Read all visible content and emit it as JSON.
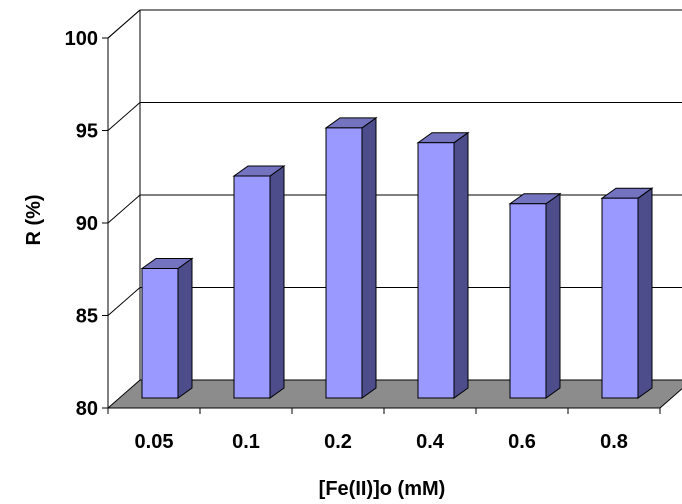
{
  "chart_data": {
    "type": "bar",
    "title": "",
    "xlabel": "[Fe(II)]o (mM)",
    "ylabel": "R (%)",
    "categories": [
      "0.05",
      "0.1",
      "0.2",
      "0.4",
      "0.6",
      "0.8"
    ],
    "values": [
      87.0,
      92.0,
      94.6,
      93.8,
      90.5,
      90.8
    ],
    "ylim": [
      80,
      100
    ],
    "yticks": [
      "80",
      "85",
      "90",
      "95",
      "100"
    ],
    "grid": true,
    "legend": "none",
    "style": "3d-column",
    "colors": {
      "bar_face": "#9999ff",
      "bar_side": "#4d4d8c",
      "bar_top": "#7373bf",
      "floor": "#8c8c8c",
      "grid": "#000000"
    }
  }
}
